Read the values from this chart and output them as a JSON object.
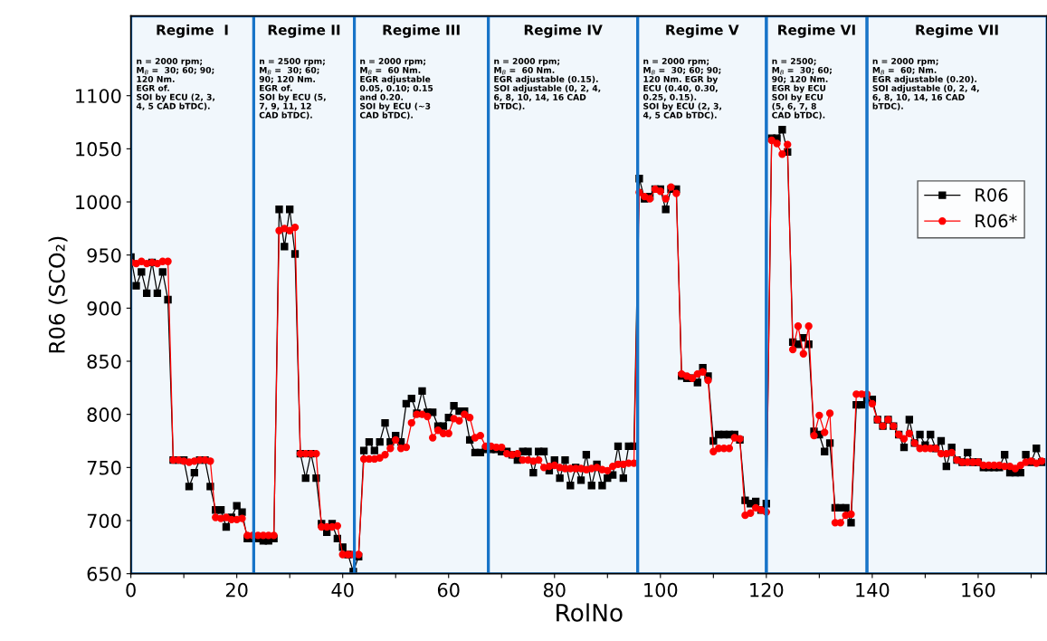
{
  "chart_data": {
    "type": "line",
    "xlabel": "RolNo",
    "ylabel": "R06 (SCO₂)",
    "xlim": [
      0,
      173
    ],
    "ylim": [
      650,
      1175
    ],
    "xticks": [
      0,
      {
        "value": 10,
        "label": null
      },
      20,
      {
        "value": 30,
        "label": null
      },
      40,
      {
        "value": 50,
        "label": null
      },
      60,
      {
        "value": 70,
        "label": null
      },
      80,
      {
        "value": 90,
        "label": null
      },
      100,
      {
        "value": 110,
        "label": null
      },
      120,
      {
        "value": 130,
        "label": null
      },
      140,
      {
        "value": 150,
        "label": null
      },
      160,
      {
        "value": 170,
        "label": null
      }
    ],
    "yticks": [
      650,
      700,
      750,
      800,
      850,
      900,
      950,
      1000,
      1050,
      1100
    ],
    "grid": false,
    "legend": "right",
    "x": [
      0,
      1,
      2,
      3,
      4,
      5,
      6,
      7,
      8,
      9,
      10,
      11,
      12,
      13,
      14,
      15,
      16,
      17,
      18,
      19,
      20,
      21,
      22,
      23,
      24,
      25,
      26,
      27,
      28,
      29,
      30,
      31,
      32,
      33,
      34,
      35,
      36,
      37,
      38,
      39,
      40,
      41,
      42,
      43,
      44,
      45,
      46,
      47,
      48,
      49,
      50,
      51,
      52,
      53,
      54,
      55,
      56,
      57,
      58,
      59,
      60,
      61,
      62,
      63,
      64,
      65,
      66,
      67,
      68,
      69,
      70,
      71,
      72,
      73,
      74,
      75,
      76,
      77,
      78,
      79,
      80,
      81,
      82,
      83,
      84,
      85,
      86,
      87,
      88,
      89,
      90,
      91,
      92,
      93,
      94,
      95,
      96,
      97,
      98,
      99,
      100,
      101,
      102,
      103,
      104,
      105,
      106,
      107,
      108,
      109,
      110,
      111,
      112,
      113,
      114,
      115,
      116,
      117,
      118,
      119,
      120,
      121,
      122,
      123,
      124,
      125,
      126,
      127,
      128,
      129,
      130,
      131,
      132,
      133,
      134,
      135,
      136,
      137,
      138,
      139,
      140,
      141,
      142,
      143,
      144,
      145,
      146,
      147,
      148,
      149,
      150,
      151,
      152,
      153,
      154,
      155,
      156,
      157,
      158,
      159,
      160,
      161,
      162,
      163,
      164,
      165,
      166,
      167,
      168,
      169,
      170,
      171,
      172
    ],
    "series": [
      {
        "name": "R06",
        "color": "#000000",
        "marker": "square",
        "line_style": "solid",
        "values": [
          948,
          921,
          934,
          914,
          943,
          914,
          934,
          908,
          757,
          757,
          757,
          732,
          745,
          757,
          757,
          732,
          710,
          710,
          694,
          703,
          714,
          708,
          683,
          683,
          683,
          681,
          681,
          683,
          993,
          958,
          993,
          951,
          763,
          740,
          763,
          740,
          697,
          689,
          697,
          683,
          675,
          668,
          652,
          666,
          766,
          774,
          766,
          774,
          792,
          774,
          780,
          774,
          810,
          815,
          801,
          822,
          802,
          802,
          789,
          789,
          797,
          808,
          803,
          803,
          776,
          764,
          764,
          767,
          767,
          767,
          765,
          765,
          762,
          757,
          765,
          765,
          745,
          765,
          765,
          747,
          757,
          740,
          757,
          733,
          750,
          738,
          762,
          733,
          753,
          733,
          740,
          743,
          770,
          740,
          770,
          770,
          1022,
          1003,
          1005,
          1012,
          1012,
          993,
          1012,
          1012,
          836,
          834,
          834,
          830,
          844,
          836,
          775,
          781,
          781,
          781,
          781,
          776,
          719,
          716,
          718,
          710,
          716,
          1060,
          1060,
          1068,
          1047,
          868,
          866,
          872,
          866,
          784,
          781,
          765,
          773,
          712,
          712,
          712,
          698,
          809,
          809,
          814,
          814,
          795,
          789,
          795,
          789,
          781,
          769,
          795,
          773,
          781,
          771,
          781,
          768,
          775,
          751,
          769,
          757,
          755,
          764,
          755,
          755,
          750,
          750,
          750,
          750,
          762,
          745,
          745,
          745,
          762,
          755,
          768,
          755
        ]
      },
      {
        "name": "R06*",
        "color": "#ff0000",
        "marker": "circle",
        "line_style": "solid",
        "values": [
          943,
          942,
          944,
          942,
          943,
          942,
          944,
          944,
          757,
          757,
          756,
          755,
          756,
          757,
          757,
          756,
          703,
          702,
          703,
          701,
          701,
          702,
          686,
          686,
          686,
          686,
          686,
          686,
          973,
          975,
          973,
          976,
          763,
          763,
          763,
          763,
          694,
          694,
          694,
          695,
          668,
          668,
          668,
          668,
          758,
          758,
          758,
          759,
          762,
          768,
          776,
          768,
          769,
          792,
          800,
          800,
          798,
          778,
          785,
          782,
          782,
          796,
          794,
          800,
          797,
          778,
          780,
          770,
          770,
          769,
          769,
          763,
          762,
          763,
          757,
          757,
          756,
          757,
          750,
          751,
          752,
          750,
          749,
          749,
          749,
          749,
          748,
          749,
          750,
          748,
          747,
          751,
          753,
          753,
          754,
          754,
          1009,
          1005,
          1003,
          1012,
          1010,
          1003,
          1014,
          1008,
          838,
          836,
          834,
          838,
          840,
          832,
          765,
          768,
          768,
          768,
          778,
          777,
          705,
          707,
          712,
          710,
          708,
          1058,
          1055,
          1045,
          1054,
          861,
          883,
          857,
          883,
          780,
          799,
          783,
          801,
          698,
          698,
          705,
          706,
          819,
          819,
          819,
          810,
          795,
          789,
          795,
          789,
          781,
          777,
          782,
          773,
          768,
          768,
          768,
          768,
          763,
          763,
          764,
          757,
          755,
          755,
          755,
          755,
          752,
          752,
          752,
          752,
          751,
          751,
          749,
          752,
          755,
          756,
          754,
          756
        ]
      }
    ],
    "bands": [
      {
        "axis": "x",
        "from": 0,
        "to": 23.2,
        "label": "Regime  I",
        "color": "#1874c8"
      },
      {
        "axis": "x",
        "from": 23.2,
        "to": 42.2,
        "label": "Regime II",
        "color": "#1874c8"
      },
      {
        "axis": "x",
        "from": 42.2,
        "to": 67.5,
        "label": "Regime III",
        "color": "#1874c8"
      },
      {
        "axis": "x",
        "from": 67.5,
        "to": 95.7,
        "label": "Regime IV",
        "color": "#1874c8"
      },
      {
        "axis": "x",
        "from": 95.7,
        "to": 120,
        "label": "Regime V",
        "color": "#1874c8"
      },
      {
        "axis": "x",
        "from": 120,
        "to": 139,
        "label": "Regime VI",
        "color": "#1874c8"
      },
      {
        "axis": "x",
        "from": 139,
        "to": 173,
        "label": "Regime VII",
        "color": "#1874c8"
      }
    ],
    "annotations": [
      "n = 2000 rpm;\nM$_{B}$ =  30; 60; 90;\n120 Nm.\nEGR of.\nSOI by ECU (2, 3,\n4, 5 CAD bTDC).",
      "n = 2500 rpm;\nM$_{B}$ =  30; 60;\n90; 120 Nm.\nEGR of.\nSOI by ECU (5,\n7, 9, 11, 12\nCAD bTDC).",
      "n = 2000 rpm;\nM$_{B}$ =  60 Nm.\nEGR adjustable\n0.05, 0.10; 0.15\nand 0.20.\nSOI by ECU (~3\nCAD bTDC).",
      "n = 2000 rpm;\nM$_{B}$ =  60 Nm.\nEGR adjustable (0.15).\nSOI adjustable (0, 2, 4,\n6, 8, 10, 14, 16 CAD\nbTDC).",
      "n = 2000 rpm;\nM$_{B}$ =  30; 60; 90;\n120 Nm. EGR by\nECU (0.40, 0.30,\n0.25, 0.15).\nSOI by ECU (2, 3,\n4, 5 CAD bTDC).",
      "n = 2500;\nM$_{B}$ =  30; 60;\n90; 120 Nm.\nEGR by ECU\nSOI by ECU\n(5, 6, 7, 8\nCAD bTDC).",
      "n = 2000 rpm;\nM$_{B}$ =  60; Nm.\nEGR adjustable (0.20).\nSOI adjustable (0, 2, 4,\n6, 8, 10, 14, 16 CAD\nbTDC)."
    ]
  }
}
